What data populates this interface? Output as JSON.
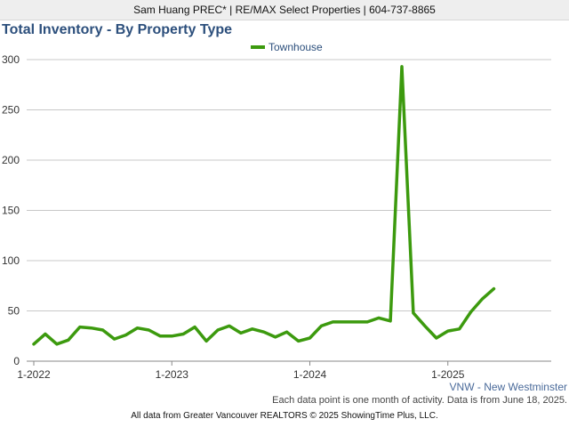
{
  "header": {
    "agent_line": "Sam Huang PREC* | RE/MAX Select Properties | 604-737-8865"
  },
  "chart_data": {
    "type": "line",
    "title": "Total Inventory - By Property Type",
    "xlabel": "",
    "ylabel": "",
    "ylim": [
      0,
      300
    ],
    "yticks": [
      0,
      50,
      100,
      150,
      200,
      250,
      300
    ],
    "xticks": [
      "1-2022",
      "1-2023",
      "1-2024",
      "1-2025"
    ],
    "grid": true,
    "legend_position": "top-center",
    "x_start": "2022-01",
    "series": [
      {
        "name": "Townhouse",
        "color": "#3c9a0e",
        "values": [
          17,
          27,
          17,
          21,
          34,
          33,
          31,
          22,
          26,
          33,
          31,
          25,
          25,
          27,
          34,
          20,
          31,
          35,
          28,
          32,
          29,
          24,
          29,
          20,
          23,
          35,
          39,
          39,
          39,
          39,
          43,
          40,
          293,
          48,
          35,
          23,
          30,
          32,
          49,
          62,
          72
        ]
      }
    ]
  },
  "region_label": "VNW - New Westminster",
  "note": "Each data point is one month of activity. Data is from June 18, 2025.",
  "footer": "All data from Greater Vancouver REALTORS © 2025 ShowingTime Plus, LLC."
}
